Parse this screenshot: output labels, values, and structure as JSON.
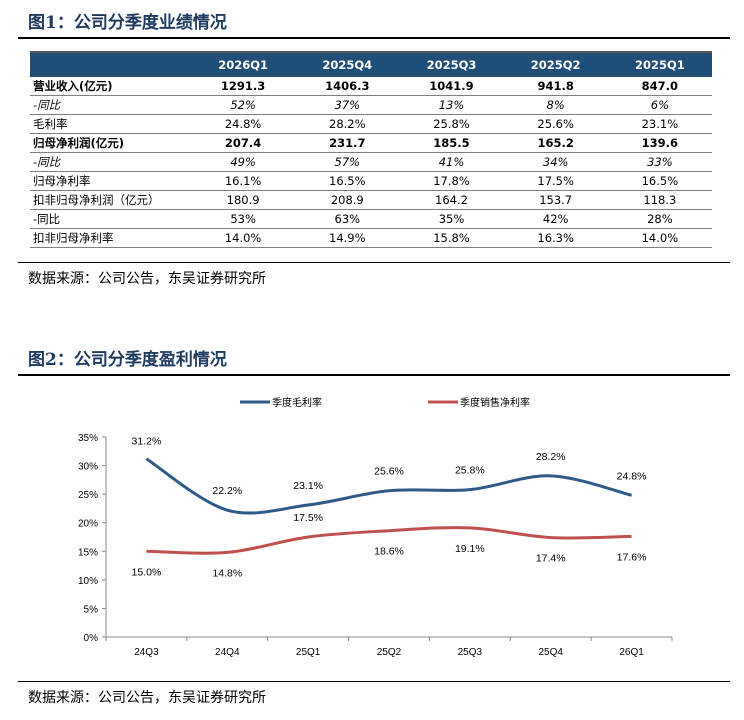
{
  "figure1": {
    "title": "图1：公司分季度业绩情况",
    "columns": [
      "",
      "2026Q1",
      "2025Q4",
      "2025Q3",
      "2025Q2",
      "2025Q1"
    ],
    "rows": [
      {
        "label": "营业收入(亿元)",
        "values": [
          "1291.3",
          "1406.3",
          "1041.9",
          "941.8",
          "847.0"
        ],
        "style": "bold"
      },
      {
        "label": "-同比",
        "values": [
          "52%",
          "37%",
          "13%",
          "8%",
          "6%"
        ],
        "style": "ital"
      },
      {
        "label": "毛利率",
        "values": [
          "24.8%",
          "28.2%",
          "25.8%",
          "25.6%",
          "23.1%"
        ],
        "style": ""
      },
      {
        "label": "归母净利润(亿元)",
        "values": [
          "207.4",
          "231.7",
          "185.5",
          "165.2",
          "139.6"
        ],
        "style": "bold"
      },
      {
        "label": "-同比",
        "values": [
          "49%",
          "57%",
          "41%",
          "34%",
          "33%"
        ],
        "style": "ital"
      },
      {
        "label": "归母净利率",
        "values": [
          "16.1%",
          "16.5%",
          "17.8%",
          "17.5%",
          "16.5%"
        ],
        "style": ""
      },
      {
        "label": "扣非归母净利润（亿元）",
        "values": [
          "180.9",
          "208.9",
          "164.2",
          "153.7",
          "118.3"
        ],
        "style": ""
      },
      {
        "label": "-同比",
        "values": [
          "53%",
          "63%",
          "35%",
          "42%",
          "28%"
        ],
        "style": ""
      },
      {
        "label": "扣非归母净利率",
        "values": [
          "14.0%",
          "14.9%",
          "15.8%",
          "16.3%",
          "14.0%"
        ],
        "style": ""
      }
    ],
    "source": "数据来源：公司公告，东吴证券研究所"
  },
  "figure2": {
    "title": "图2：公司分季度盈利情况",
    "source": "数据来源：公司公告，东吴证券研究所"
  },
  "chart_data": {
    "type": "line",
    "categories": [
      "24Q3",
      "24Q4",
      "25Q1",
      "25Q2",
      "25Q3",
      "25Q4",
      "26Q1"
    ],
    "series": [
      {
        "name": "季度毛利率",
        "values": [
          31.2,
          22.2,
          23.1,
          25.6,
          25.8,
          28.2,
          24.8
        ],
        "color": "#2e5a8a"
      },
      {
        "name": "季度销售净利率",
        "values": [
          15.0,
          14.8,
          17.5,
          18.6,
          19.1,
          17.4,
          17.6
        ],
        "color": "#c0504d"
      }
    ],
    "ylim": [
      0,
      35
    ],
    "yticks": [
      "0%",
      "5%",
      "10%",
      "15%",
      "20%",
      "25%",
      "30%",
      "35%"
    ],
    "grid": false,
    "legend": "top",
    "data_labels": true
  }
}
